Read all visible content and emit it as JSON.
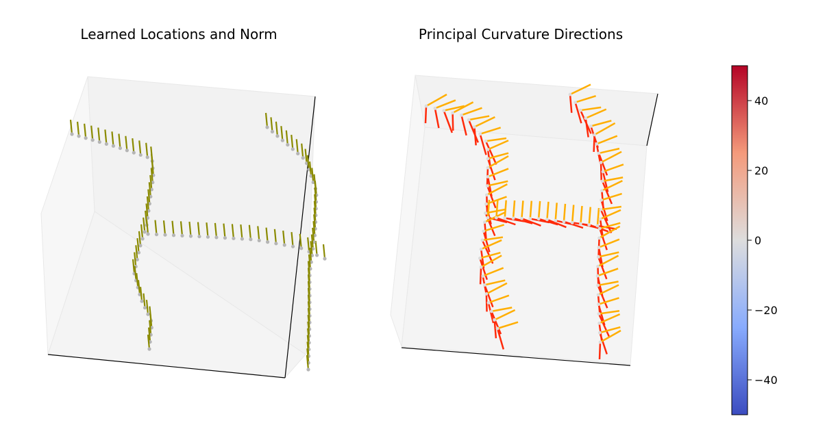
{
  "figure": {
    "left_title": "Learned Locations and Norm",
    "right_title": "Principal Curvature Directions"
  },
  "colors": {
    "pane_fill": "#f2f2f2",
    "pane_edge": "#e6e6e6",
    "axis_line": "#000000",
    "normal_stem": "#8a8a00",
    "point": "#b5b5b5",
    "dir_max": "#ff2a0a",
    "dir_min": "#ffae00",
    "colormap": "coolwarm"
  },
  "chart_data": [
    {
      "type": "scatter",
      "projection": "3d",
      "title": "Learned Locations and Norm",
      "description_shape": "letter H (vertical strokes with horizontal bar)",
      "marks": "points with normal vectors"
    },
    {
      "type": "scatter",
      "projection": "3d",
      "title": "Principal Curvature Directions",
      "description_shape": "letter H",
      "marks": "points with principal direction vectors (two families)"
    },
    {
      "type": "colorbar",
      "colormap": "coolwarm",
      "vmin": -50,
      "vmax": 50,
      "ticks": [
        40,
        20,
        0,
        -20,
        -40
      ],
      "tick_labels": [
        "40",
        "20",
        "0",
        "−20",
        "−40"
      ]
    }
  ]
}
